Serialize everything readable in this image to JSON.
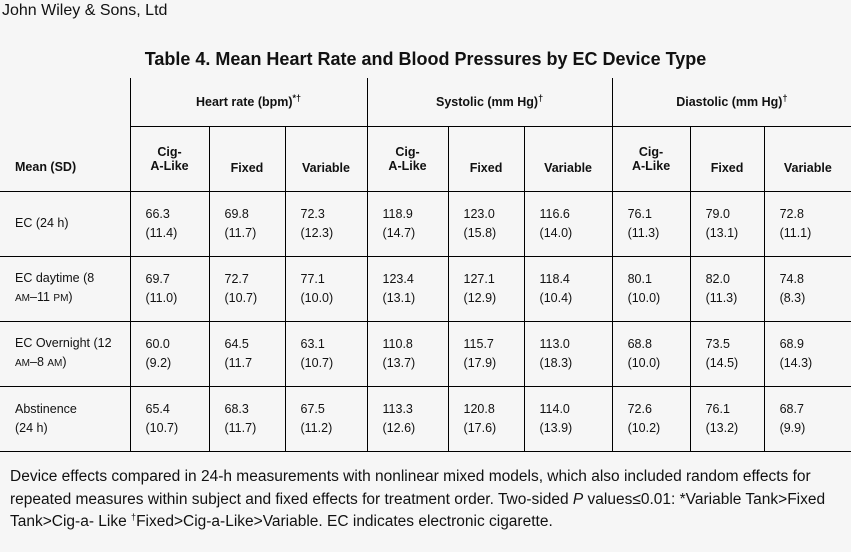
{
  "publisher": "John Wiley & Sons, Ltd",
  "title": "Table 4. Mean Heart Rate and Blood Pressures by EC Device Type",
  "header": {
    "groups": [
      {
        "label": "Heart rate (bpm)",
        "mark": "*†"
      },
      {
        "label": "Systolic (mm Hg)",
        "mark": "†"
      },
      {
        "label": "Diastolic (mm Hg)",
        "mark": "†"
      }
    ],
    "row_header": "Mean (SD)",
    "sub_cig_line1": "Cig-",
    "sub_cig_line2": "A-Like",
    "sub_fixed": "Fixed",
    "sub_variable": "Variable"
  },
  "rows": [
    {
      "label_line1": "EC (24 h)",
      "label_line2": "",
      "cells": [
        [
          "66.3",
          "(11.4)"
        ],
        [
          "69.8",
          "(11.7)"
        ],
        [
          "72.3",
          "(12.3)"
        ],
        [
          "118.9",
          "(14.7)"
        ],
        [
          "123.0",
          "(15.8)"
        ],
        [
          "116.6",
          "(14.0)"
        ],
        [
          "76.1",
          "(11.3)"
        ],
        [
          "79.0",
          "(13.1)"
        ],
        [
          "72.8",
          "(11.1)"
        ]
      ]
    },
    {
      "label_line1": "EC daytime (8",
      "label_line2_a": "AM",
      "label_line2_b": "–11 ",
      "label_line2_c": "PM",
      "label_line2_d": ")",
      "cells": [
        [
          "69.7",
          "(11.0)"
        ],
        [
          "72.7",
          "(10.7)"
        ],
        [
          "77.1",
          "(10.0)"
        ],
        [
          "123.4",
          "(13.1)"
        ],
        [
          "127.1",
          "(12.9)"
        ],
        [
          "118.4",
          "(10.4)"
        ],
        [
          "80.1",
          "(10.0)"
        ],
        [
          "82.0",
          "(11.3)"
        ],
        [
          "74.8",
          "(8.3)"
        ]
      ]
    },
    {
      "label_line1": "EC Overnight (12",
      "label_line2_a": "AM",
      "label_line2_b": "–8 ",
      "label_line2_c": "AM",
      "label_line2_d": ")",
      "cells": [
        [
          "60.0",
          "(9.2)"
        ],
        [
          "64.5",
          "(11.7"
        ],
        [
          "63.1",
          "(10.7)"
        ],
        [
          "110.8",
          "(13.7)"
        ],
        [
          "115.7",
          "(17.9)"
        ],
        [
          "113.0",
          "(18.3)"
        ],
        [
          "68.8",
          "(10.0)"
        ],
        [
          "73.5",
          "(14.5)"
        ],
        [
          "68.9",
          "(14.3)"
        ]
      ]
    },
    {
      "label_line1": "Abstinence",
      "label_line2": "(24 h)",
      "cells": [
        [
          "65.4",
          "(10.7)"
        ],
        [
          "68.3",
          "(11.7)"
        ],
        [
          "67.5",
          "(11.2)"
        ],
        [
          "113.3",
          "(12.6)"
        ],
        [
          "120.8",
          "(17.6)"
        ],
        [
          "114.0",
          "(13.9)"
        ],
        [
          "72.6",
          "(10.2)"
        ],
        [
          "76.1",
          "(13.2)"
        ],
        [
          "68.7",
          "(9.9)"
        ]
      ]
    }
  ],
  "footnote": {
    "part1": "Device effects compared in 24-h measurements with nonlinear mixed models, which also included random effects for repeated measures within subject and fixed effects for treatment order. Two-sided ",
    "p": "P",
    "part2": " values≤0.01: *Variable Tank>Fixed Tank>Cig-a- Like ",
    "dagger": "†",
    "part3": "Fixed>Cig-a-Like>Variable. EC indicates electronic cigarette."
  }
}
